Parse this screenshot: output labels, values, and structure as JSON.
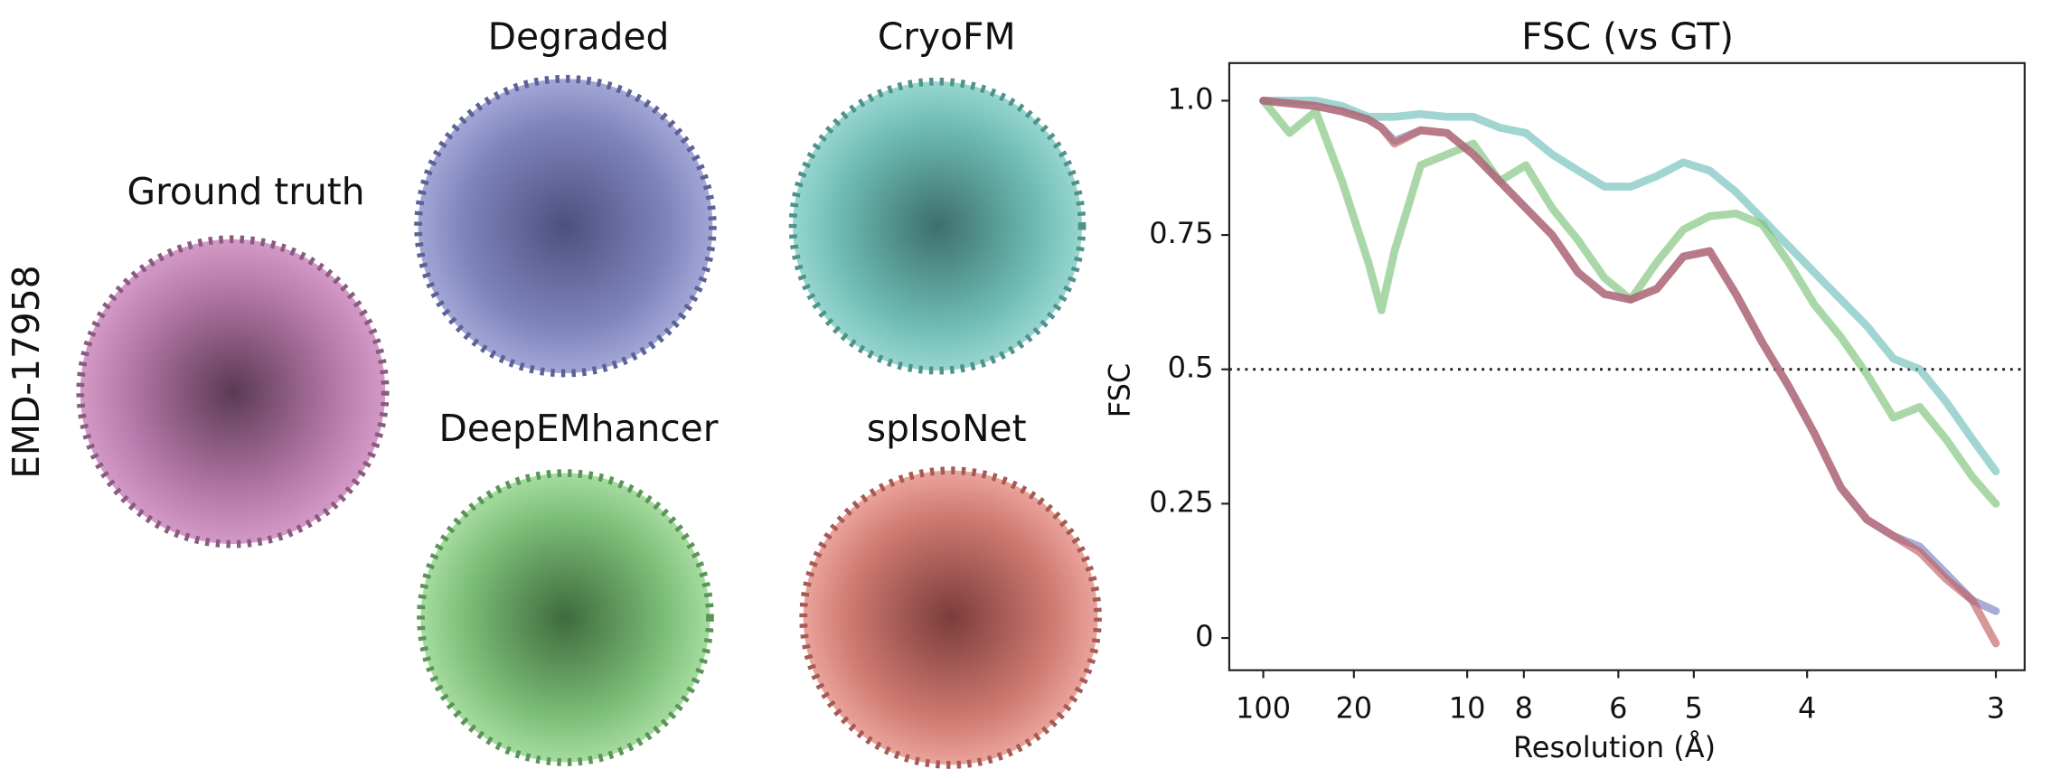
{
  "panels": {
    "row_label": "EMD-17958",
    "ground_truth": "Ground truth",
    "degraded": "Degraded",
    "cryofm": "CryoFM",
    "deepemhancer": "DeepEMhancer",
    "spisonet": "spIsoNet"
  },
  "chart_data": {
    "type": "line",
    "title": "FSC (vs GT)",
    "x_label": "Resolution (Å)",
    "y_label": "FSC",
    "x": [
      0.01,
      0.0216,
      0.0332,
      0.0448,
      0.0563,
      0.0621,
      0.0679,
      0.0795,
      0.0911,
      0.1027,
      0.1143,
      0.1259,
      0.1375,
      0.149,
      0.1606,
      0.1722,
      0.1838,
      0.1954,
      0.207,
      0.2186,
      0.2302,
      0.2417,
      0.2533,
      0.2649,
      0.2765,
      0.2881,
      0.2997,
      0.3113,
      0.3229,
      0.3333
    ],
    "series": [
      {
        "color": "#6fbfb8",
        "values": [
          1.0,
          1.0,
          1.0,
          0.99,
          0.97,
          0.97,
          0.97,
          0.975,
          0.97,
          0.97,
          0.95,
          0.94,
          0.9,
          0.87,
          0.84,
          0.84,
          0.86,
          0.885,
          0.87,
          0.83,
          0.78,
          0.73,
          0.68,
          0.63,
          0.58,
          0.52,
          0.5,
          0.44,
          0.37,
          0.31
        ]
      },
      {
        "color": "#7cc27a",
        "values": [
          1.0,
          0.94,
          0.98,
          0.85,
          0.7,
          0.61,
          0.72,
          0.88,
          0.9,
          0.92,
          0.85,
          0.88,
          0.8,
          0.74,
          0.67,
          0.63,
          0.7,
          0.76,
          0.785,
          0.79,
          0.77,
          0.7,
          0.62,
          0.56,
          0.49,
          0.41,
          0.43,
          0.37,
          0.3,
          0.25
        ]
      },
      {
        "color": "#7a7fc0",
        "values": [
          1.0,
          0.995,
          0.99,
          0.98,
          0.965,
          0.95,
          0.925,
          0.945,
          0.94,
          0.9,
          0.85,
          0.8,
          0.75,
          0.68,
          0.64,
          0.63,
          0.65,
          0.71,
          0.72,
          0.64,
          0.55,
          0.47,
          0.38,
          0.28,
          0.22,
          0.19,
          0.17,
          0.12,
          0.07,
          0.05
        ]
      },
      {
        "color": "#c0605e",
        "values": [
          1.0,
          0.995,
          0.99,
          0.98,
          0.965,
          0.95,
          0.92,
          0.945,
          0.94,
          0.9,
          0.85,
          0.8,
          0.75,
          0.68,
          0.64,
          0.63,
          0.65,
          0.71,
          0.72,
          0.64,
          0.55,
          0.47,
          0.38,
          0.28,
          0.22,
          0.19,
          0.16,
          0.11,
          0.07,
          -0.01
        ]
      }
    ],
    "reference_line": 0.5,
    "xlim": [
      -0.005,
      0.346
    ],
    "ylim": [
      -0.06,
      1.07
    ],
    "xticks": [
      {
        "value": 0.01,
        "label": "100"
      },
      {
        "value": 0.05,
        "label": "20"
      },
      {
        "value": 0.1,
        "label": "10"
      },
      {
        "value": 0.125,
        "label": "8"
      },
      {
        "value": 0.1667,
        "label": "6"
      },
      {
        "value": 0.2,
        "label": "5"
      },
      {
        "value": 0.25,
        "label": "4"
      },
      {
        "value": 0.3333,
        "label": "3"
      }
    ],
    "yticks": [
      0,
      0.25,
      0.5,
      0.75,
      {
        "value": 1,
        "label": "1.0"
      }
    ]
  }
}
